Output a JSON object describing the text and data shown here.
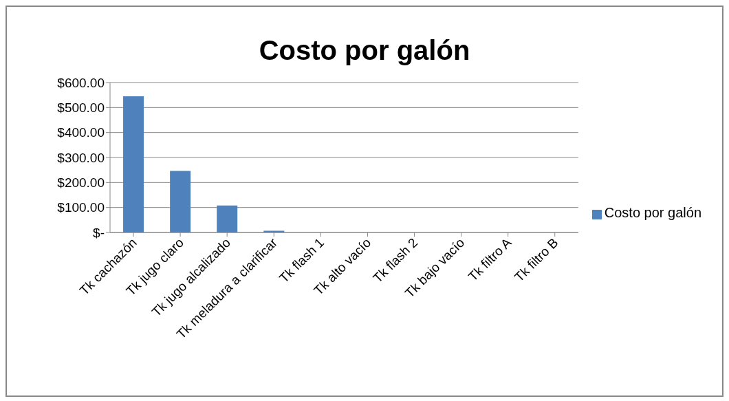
{
  "chart_data": {
    "type": "bar",
    "title": "Costo por galón",
    "categories": [
      "Tk cachazón",
      "Tk jugo claro",
      "Tk jugo alcalizado",
      "Tk meladura a clarificar",
      "Tk flash 1",
      "Tk alto vacío",
      "Tk flash 2",
      "Tk bajo vacío",
      "Tk filtro A",
      "Tk filtro B"
    ],
    "series": [
      {
        "name": "Costo por galón",
        "color": "#4f81bd",
        "values": [
          545,
          246,
          108,
          7,
          0,
          0,
          0,
          0,
          0,
          0
        ]
      }
    ],
    "ylim": [
      0,
      600
    ],
    "yticks": [
      {
        "value": 0,
        "label": "$-"
      },
      {
        "value": 100,
        "label": "$100.00"
      },
      {
        "value": 200,
        "label": "$200.00"
      },
      {
        "value": 300,
        "label": "$300.00"
      },
      {
        "value": 400,
        "label": "$400.00"
      },
      {
        "value": 500,
        "label": "$500.00"
      },
      {
        "value": 600,
        "label": "$600.00"
      }
    ],
    "grid": "y",
    "legend": "right"
  }
}
